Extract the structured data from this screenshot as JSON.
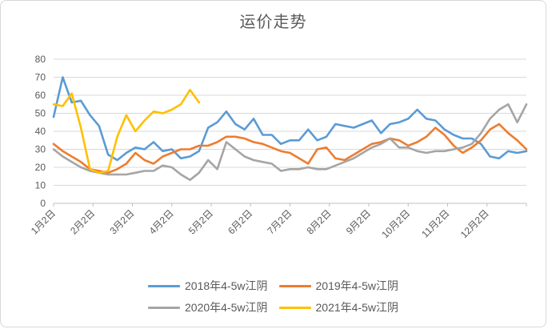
{
  "chart_data": {
    "type": "line",
    "title": "运价走势",
    "x_tick_labels": [
      "1月2日",
      "2月2日",
      "3月2日",
      "4月2日",
      "5月2日",
      "6月2日",
      "7月2日",
      "8月2日",
      "9月2日",
      "10月2日",
      "11月2日",
      "12月2日"
    ],
    "x_note": "values sampled weekly from 1月2日 to year end (53 points)",
    "y_ticks": [
      0,
      10,
      20,
      30,
      40,
      50,
      60,
      70,
      80
    ],
    "ylim": [
      0,
      80
    ],
    "grid": "horizontal",
    "legend_position": "bottom",
    "axis_color": "#bfbfbf",
    "grid_color": "#d9d9d9",
    "label_color": "#595959",
    "series": [
      {
        "name": "2018年4-5w江阴",
        "color": "#5B9BD5",
        "values": [
          48,
          70,
          56,
          57,
          49,
          43,
          27,
          24,
          28,
          31,
          30,
          34,
          29,
          30,
          25,
          26,
          29,
          42,
          45,
          51,
          44,
          41,
          47,
          38,
          38,
          33,
          35,
          35,
          41,
          35,
          37,
          44,
          43,
          42,
          44,
          46,
          39,
          44,
          45,
          47,
          52,
          47,
          46,
          41,
          38,
          36,
          36,
          33,
          26,
          25,
          29,
          28,
          29
        ]
      },
      {
        "name": "2019年4-5w江阴",
        "color": "#ED7D31",
        "values": [
          33,
          29,
          26,
          23,
          19,
          18,
          17,
          19,
          22,
          28,
          24,
          22,
          26,
          28,
          30,
          30,
          32,
          32,
          34,
          37,
          37,
          36,
          34,
          33,
          31,
          29,
          28,
          25,
          22,
          30,
          31,
          25,
          24,
          27,
          30,
          33,
          34,
          36,
          35,
          32,
          34,
          37,
          42,
          38,
          32,
          28,
          31,
          35,
          41,
          44,
          39,
          35,
          30
        ]
      },
      {
        "name": "2020年4-5w江阴",
        "color": "#A5A5A5",
        "values": [
          30,
          26,
          23,
          20,
          18,
          17,
          16,
          16,
          16,
          17,
          18,
          18,
          21,
          20,
          16,
          13,
          17,
          24,
          19,
          34,
          30,
          26,
          24,
          23,
          22,
          18,
          19,
          19,
          20,
          19,
          19,
          21,
          23,
          25,
          28,
          31,
          33,
          36,
          31,
          31,
          29,
          28,
          29,
          29,
          30,
          31,
          33,
          39,
          47,
          52,
          55,
          45,
          55
        ]
      },
      {
        "name": "2021年4-5w江阴",
        "color": "#FFC000",
        "values": [
          55,
          54,
          61,
          42,
          19,
          17,
          18,
          37,
          49,
          40,
          46,
          51,
          50,
          52,
          55,
          63,
          56,
          null,
          null,
          null,
          null,
          null,
          null,
          null,
          null,
          null,
          null,
          null,
          null,
          null,
          null,
          null,
          null,
          null,
          null,
          null,
          null,
          null,
          null,
          null,
          null,
          null,
          null,
          null,
          null,
          null,
          null,
          null,
          null,
          null,
          null,
          null,
          null
        ]
      }
    ]
  }
}
